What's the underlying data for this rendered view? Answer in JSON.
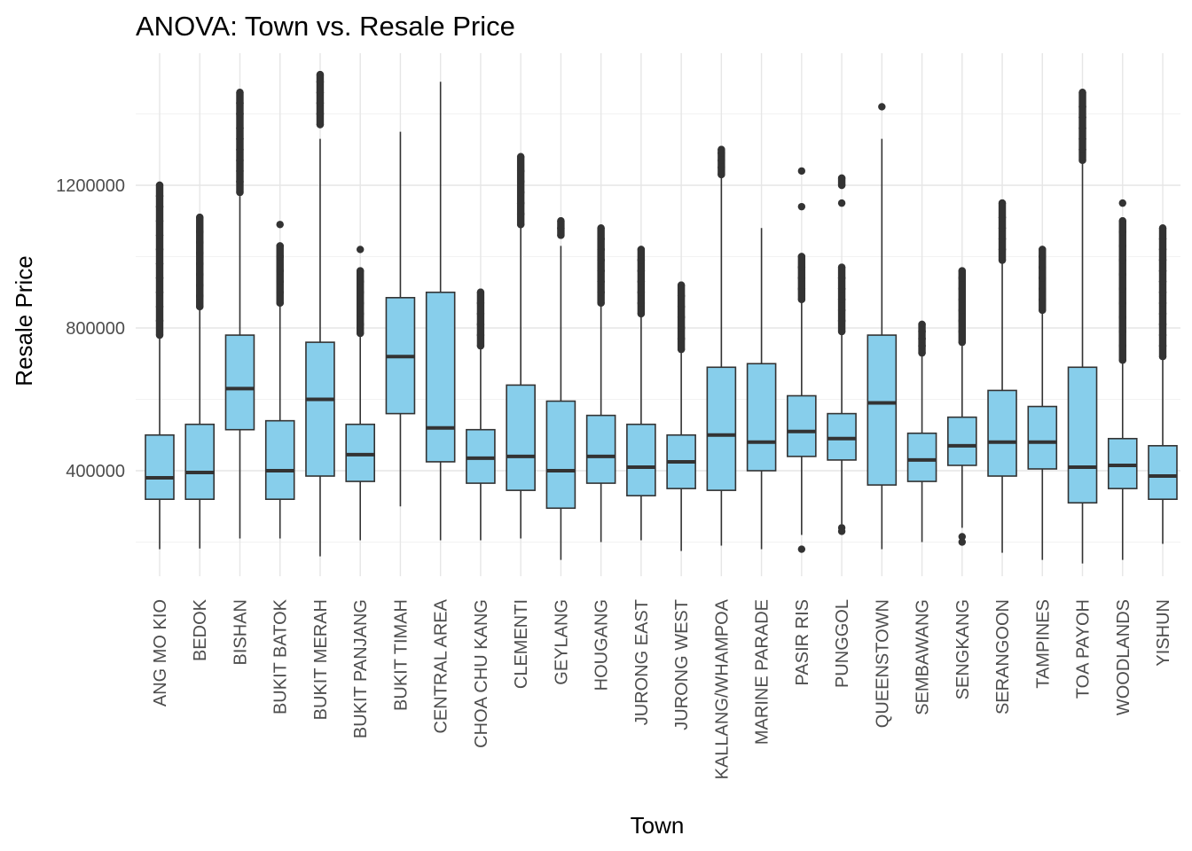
{
  "chart_data": {
    "type": "boxplot",
    "title": "ANOVA: Town vs. Resale Price",
    "xlabel": "Town",
    "ylabel": "Resale Price",
    "ylim": [
      110000,
      1520000
    ],
    "yticks": [
      400000,
      800000,
      1200000
    ],
    "grid": true,
    "box_color": "#87CEEB",
    "line_color": "#333333",
    "categories": [
      "ANG MO KIO",
      "BEDOK",
      "BISHAN",
      "BUKIT BATOK",
      "BUKIT MERAH",
      "BUKIT PANJANG",
      "BUKIT TIMAH",
      "CENTRAL AREA",
      "CHOA CHU KANG",
      "CLEMENTI",
      "GEYLANG",
      "HOUGANG",
      "JURONG EAST",
      "JURONG WEST",
      "KALLANG/WHAMPOA",
      "MARINE PARADE",
      "PASIR RIS",
      "PUNGGOL",
      "QUEENSTOWN",
      "SEMBAWANG",
      "SENGKANG",
      "SERANGOON",
      "TAMPINES",
      "TOA PAYOH",
      "WOODLANDS",
      "YISHUN"
    ],
    "series": [
      {
        "min": 180000,
        "q1": 320000,
        "median": 380000,
        "q3": 500000,
        "max": 770000,
        "outliers": [
          780000,
          820000,
          860000,
          900000,
          940000,
          980000,
          1020000,
          1060000,
          1100000,
          1140000,
          1170000,
          1200000
        ]
      },
      {
        "min": 182000,
        "q1": 320000,
        "median": 395000,
        "q3": 530000,
        "max": 850000,
        "outliers": [
          860000,
          890000,
          920000,
          950000,
          980000,
          1010000,
          1040000,
          1070000,
          1110000
        ]
      },
      {
        "min": 210000,
        "q1": 515000,
        "median": 630000,
        "q3": 780000,
        "max": 1170000,
        "outliers": [
          1180000,
          1210000,
          1240000,
          1270000,
          1300000,
          1330000,
          1360000,
          1400000,
          1430000,
          1460000
        ]
      },
      {
        "min": 210000,
        "q1": 320000,
        "median": 400000,
        "q3": 540000,
        "max": 860000,
        "outliers": [
          870000,
          900000,
          930000,
          960000,
          1000000,
          1030000,
          1090000
        ]
      },
      {
        "min": 160000,
        "q1": 385000,
        "median": 600000,
        "q3": 760000,
        "max": 1330000,
        "outliers": [
          1370000,
          1400000,
          1430000,
          1460000,
          1490000,
          1510000
        ]
      },
      {
        "min": 205000,
        "q1": 370000,
        "median": 445000,
        "q3": 530000,
        "max": 775000,
        "outliers": [
          785000,
          810000,
          840000,
          870000,
          900000,
          930000,
          960000,
          1020000
        ]
      },
      {
        "min": 300000,
        "q1": 560000,
        "median": 720000,
        "q3": 885000,
        "max": 1350000,
        "outliers": []
      },
      {
        "min": 205000,
        "q1": 425000,
        "median": 520000,
        "q3": 900000,
        "max": 1490000,
        "outliers": []
      },
      {
        "min": 205000,
        "q1": 365000,
        "median": 435000,
        "q3": 515000,
        "max": 740000,
        "outliers": [
          750000,
          780000,
          810000,
          840000,
          870000,
          900000
        ]
      },
      {
        "min": 210000,
        "q1": 345000,
        "median": 440000,
        "q3": 640000,
        "max": 1080000,
        "outliers": [
          1090000,
          1120000,
          1150000,
          1180000,
          1210000,
          1240000,
          1280000
        ]
      },
      {
        "min": 150000,
        "q1": 295000,
        "median": 400000,
        "q3": 595000,
        "max": 1030000,
        "outliers": [
          1060000,
          1080000,
          1100000
        ]
      },
      {
        "min": 200000,
        "q1": 365000,
        "median": 440000,
        "q3": 555000,
        "max": 860000,
        "outliers": [
          870000,
          900000,
          930000,
          960000,
          990000,
          1020000,
          1050000,
          1080000
        ]
      },
      {
        "min": 205000,
        "q1": 330000,
        "median": 410000,
        "q3": 530000,
        "max": 830000,
        "outliers": [
          840000,
          870000,
          900000,
          930000,
          960000,
          990000,
          1020000
        ]
      },
      {
        "min": 175000,
        "q1": 350000,
        "median": 425000,
        "q3": 500000,
        "max": 730000,
        "outliers": [
          740000,
          770000,
          800000,
          830000,
          860000,
          890000,
          920000
        ]
      },
      {
        "min": 190000,
        "q1": 345000,
        "median": 500000,
        "q3": 690000,
        "max": 1220000,
        "outliers": [
          1230000,
          1250000,
          1270000,
          1290000,
          1300000
        ]
      },
      {
        "min": 180000,
        "q1": 400000,
        "median": 480000,
        "q3": 700000,
        "max": 1080000,
        "outliers": []
      },
      {
        "min": 220000,
        "q1": 440000,
        "median": 510000,
        "q3": 610000,
        "max": 870000,
        "outliers": [
          880000,
          910000,
          940000,
          970000,
          1000000,
          1140000,
          1240000,
          180000
        ]
      },
      {
        "min": 250000,
        "q1": 430000,
        "median": 490000,
        "q3": 560000,
        "max": 780000,
        "outliers": [
          790000,
          820000,
          850000,
          880000,
          910000,
          940000,
          970000,
          1150000,
          1200000,
          1220000,
          240000,
          230000
        ]
      },
      {
        "min": 180000,
        "q1": 360000,
        "median": 590000,
        "q3": 780000,
        "max": 1330000,
        "outliers": [
          1420000
        ]
      },
      {
        "min": 200000,
        "q1": 370000,
        "median": 430000,
        "q3": 505000,
        "max": 720000,
        "outliers": [
          730000,
          750000,
          770000,
          790000,
          810000
        ]
      },
      {
        "min": 240000,
        "q1": 415000,
        "median": 470000,
        "q3": 550000,
        "max": 750000,
        "outliers": [
          760000,
          790000,
          820000,
          850000,
          880000,
          910000,
          940000,
          960000,
          215000,
          200000
        ]
      },
      {
        "min": 170000,
        "q1": 385000,
        "median": 480000,
        "q3": 625000,
        "max": 980000,
        "outliers": [
          990000,
          1020000,
          1050000,
          1080000,
          1110000,
          1150000
        ]
      },
      {
        "min": 150000,
        "q1": 405000,
        "median": 480000,
        "q3": 580000,
        "max": 840000,
        "outliers": [
          850000,
          880000,
          910000,
          940000,
          970000,
          1000000,
          1020000
        ]
      },
      {
        "min": 140000,
        "q1": 310000,
        "median": 410000,
        "q3": 690000,
        "max": 1260000,
        "outliers": [
          1270000,
          1300000,
          1330000,
          1360000,
          1390000,
          1420000,
          1460000
        ]
      },
      {
        "min": 150000,
        "q1": 350000,
        "median": 415000,
        "q3": 490000,
        "max": 700000,
        "outliers": [
          710000,
          750000,
          790000,
          830000,
          870000,
          910000,
          950000,
          990000,
          1030000,
          1070000,
          1100000,
          1150000
        ]
      },
      {
        "min": 195000,
        "q1": 320000,
        "median": 385000,
        "q3": 470000,
        "max": 710000,
        "outliers": [
          720000,
          750000,
          780000,
          810000,
          840000,
          870000,
          900000,
          930000,
          960000,
          990000,
          1020000,
          1050000,
          1080000
        ]
      }
    ]
  }
}
